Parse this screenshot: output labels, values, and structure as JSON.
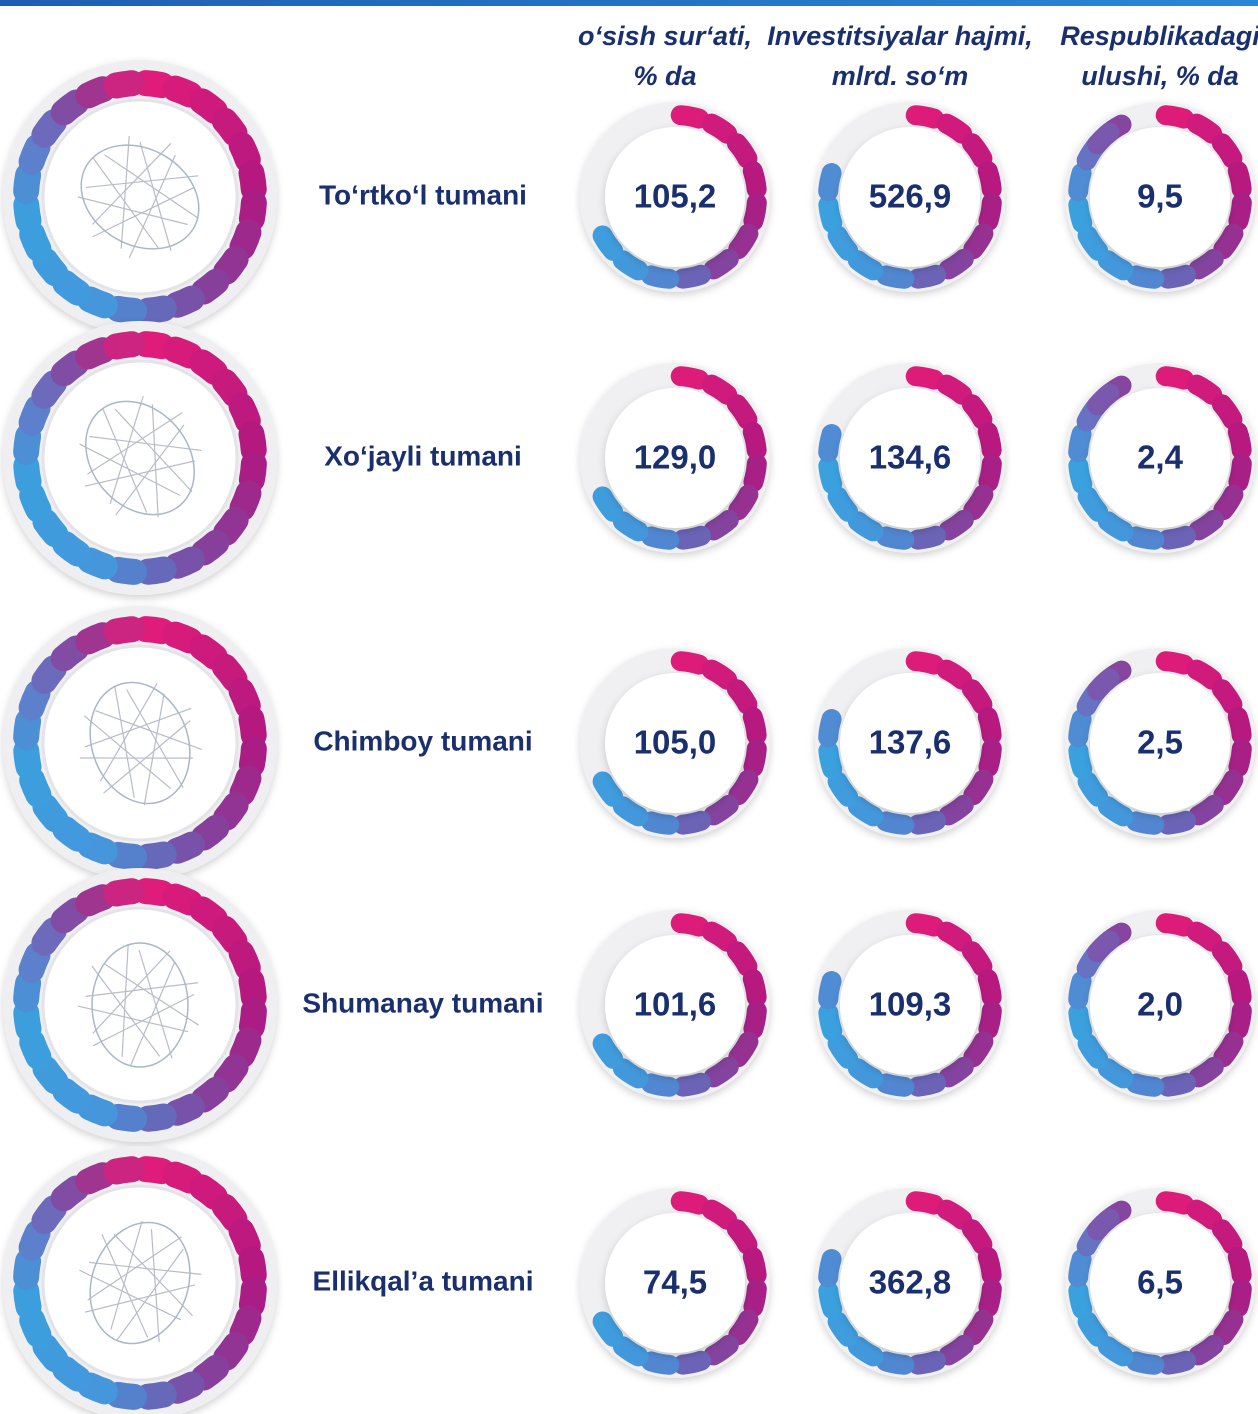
{
  "headers": [
    {
      "lines": [
        "o‘sish sur‘ati,",
        "% da"
      ]
    },
    {
      "lines": [
        "Investitsiyalar hajmi,",
        "mlrd. so‘m"
      ]
    },
    {
      "lines": [
        "Respublikadagi",
        "ulushi, % da"
      ]
    }
  ],
  "rows": [
    {
      "name": "To‘rtko‘l tumani",
      "values": [
        "105,2",
        "526,9",
        "9,5"
      ]
    },
    {
      "name": "Xo‘jayli tumani",
      "values": [
        "129,0",
        "134,6",
        "2,4"
      ]
    },
    {
      "name": "Chimboy tumani",
      "values": [
        "105,0",
        "137,6",
        "2,5"
      ]
    },
    {
      "name": "Shumanay tumani",
      "values": [
        "101,6",
        "109,3",
        "2,0"
      ]
    },
    {
      "name": "Ellikqal’a tumani",
      "values": [
        "74,5",
        "362,8",
        "6,5"
      ]
    }
  ]
}
